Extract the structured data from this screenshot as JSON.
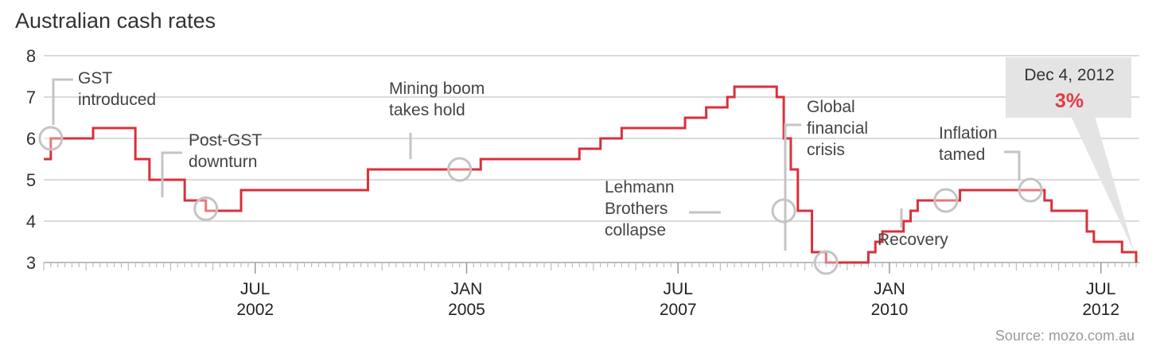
{
  "chart_data": {
    "type": "line",
    "title": "Australian cash rates",
    "source": "Source: mozo.com.au",
    "y_ticks": [
      "3",
      "4",
      "5",
      "6",
      "7",
      "8"
    ],
    "ylim": [
      3,
      8
    ],
    "xlim": [
      "2000-01",
      "2012-12"
    ],
    "x_ticks": [
      {
        "month": "JUL",
        "year": "2002",
        "date": "2002-07"
      },
      {
        "month": "JAN",
        "year": "2005",
        "date": "2005-01"
      },
      {
        "month": "JUL",
        "year": "2007",
        "date": "2007-07"
      },
      {
        "month": "JAN",
        "year": "2010",
        "date": "2010-01"
      },
      {
        "month": "JUL",
        "year": "2012",
        "date": "2012-07"
      }
    ],
    "grid": true,
    "series": [
      {
        "color": "#d9303b",
        "step": true,
        "points": [
          {
            "x": "2000-01",
            "y": 5.5
          },
          {
            "x": "2000-02",
            "y": 6.0
          },
          {
            "x": "2000-08",
            "y": 6.25
          },
          {
            "x": "2001-02",
            "y": 5.5
          },
          {
            "x": "2001-04",
            "y": 5.0
          },
          {
            "x": "2001-09",
            "y": 4.5
          },
          {
            "x": "2001-12",
            "y": 4.25
          },
          {
            "x": "2002-05",
            "y": 4.75
          },
          {
            "x": "2003-11",
            "y": 5.25
          },
          {
            "x": "2005-03",
            "y": 5.5
          },
          {
            "x": "2006-05",
            "y": 5.75
          },
          {
            "x": "2006-08",
            "y": 6.0
          },
          {
            "x": "2006-11",
            "y": 6.25
          },
          {
            "x": "2007-08",
            "y": 6.5
          },
          {
            "x": "2007-11",
            "y": 6.75
          },
          {
            "x": "2008-02",
            "y": 7.0
          },
          {
            "x": "2008-03",
            "y": 7.25
          },
          {
            "x": "2008-09",
            "y": 7.0
          },
          {
            "x": "2008-10",
            "y": 6.0
          },
          {
            "x": "2008-11",
            "y": 5.25
          },
          {
            "x": "2008-12",
            "y": 4.25
          },
          {
            "x": "2009-02",
            "y": 3.25
          },
          {
            "x": "2009-04",
            "y": 3.0
          },
          {
            "x": "2009-10",
            "y": 3.25
          },
          {
            "x": "2009-11",
            "y": 3.5
          },
          {
            "x": "2009-12",
            "y": 3.75
          },
          {
            "x": "2010-03",
            "y": 4.0
          },
          {
            "x": "2010-04",
            "y": 4.25
          },
          {
            "x": "2010-05",
            "y": 4.5
          },
          {
            "x": "2010-11",
            "y": 4.75
          },
          {
            "x": "2011-11",
            "y": 4.5
          },
          {
            "x": "2011-12",
            "y": 4.25
          },
          {
            "x": "2012-05",
            "y": 3.75
          },
          {
            "x": "2012-06",
            "y": 3.5
          },
          {
            "x": "2012-10",
            "y": 3.25
          },
          {
            "x": "2012-12",
            "y": 3.0
          }
        ]
      }
    ],
    "annotations": [
      {
        "lines": [
          "GST",
          "introduced"
        ],
        "x": "2000-02",
        "y": 6.0
      },
      {
        "lines": [
          "Post-GST",
          "downturn"
        ],
        "x": "2001-12",
        "y": 4.3
      },
      {
        "lines": [
          "Mining boom",
          "takes hold"
        ],
        "x": "2004-12",
        "y": 5.25
      },
      {
        "lines": [
          "Lehmann",
          "Brothers",
          "collapse"
        ],
        "x": "2008-10",
        "y": 4.25
      },
      {
        "lines": [
          "Global",
          "financial",
          "crisis"
        ],
        "x": "2009-04",
        "y": 3.0
      },
      {
        "lines": [
          "Recovery"
        ],
        "x": "2010-09",
        "y": 4.5
      },
      {
        "lines": [
          "Inflation",
          "tamed"
        ],
        "x": "2011-09",
        "y": 4.75
      }
    ],
    "callout": {
      "date": "Dec 4, 2012",
      "value": "3%"
    }
  }
}
